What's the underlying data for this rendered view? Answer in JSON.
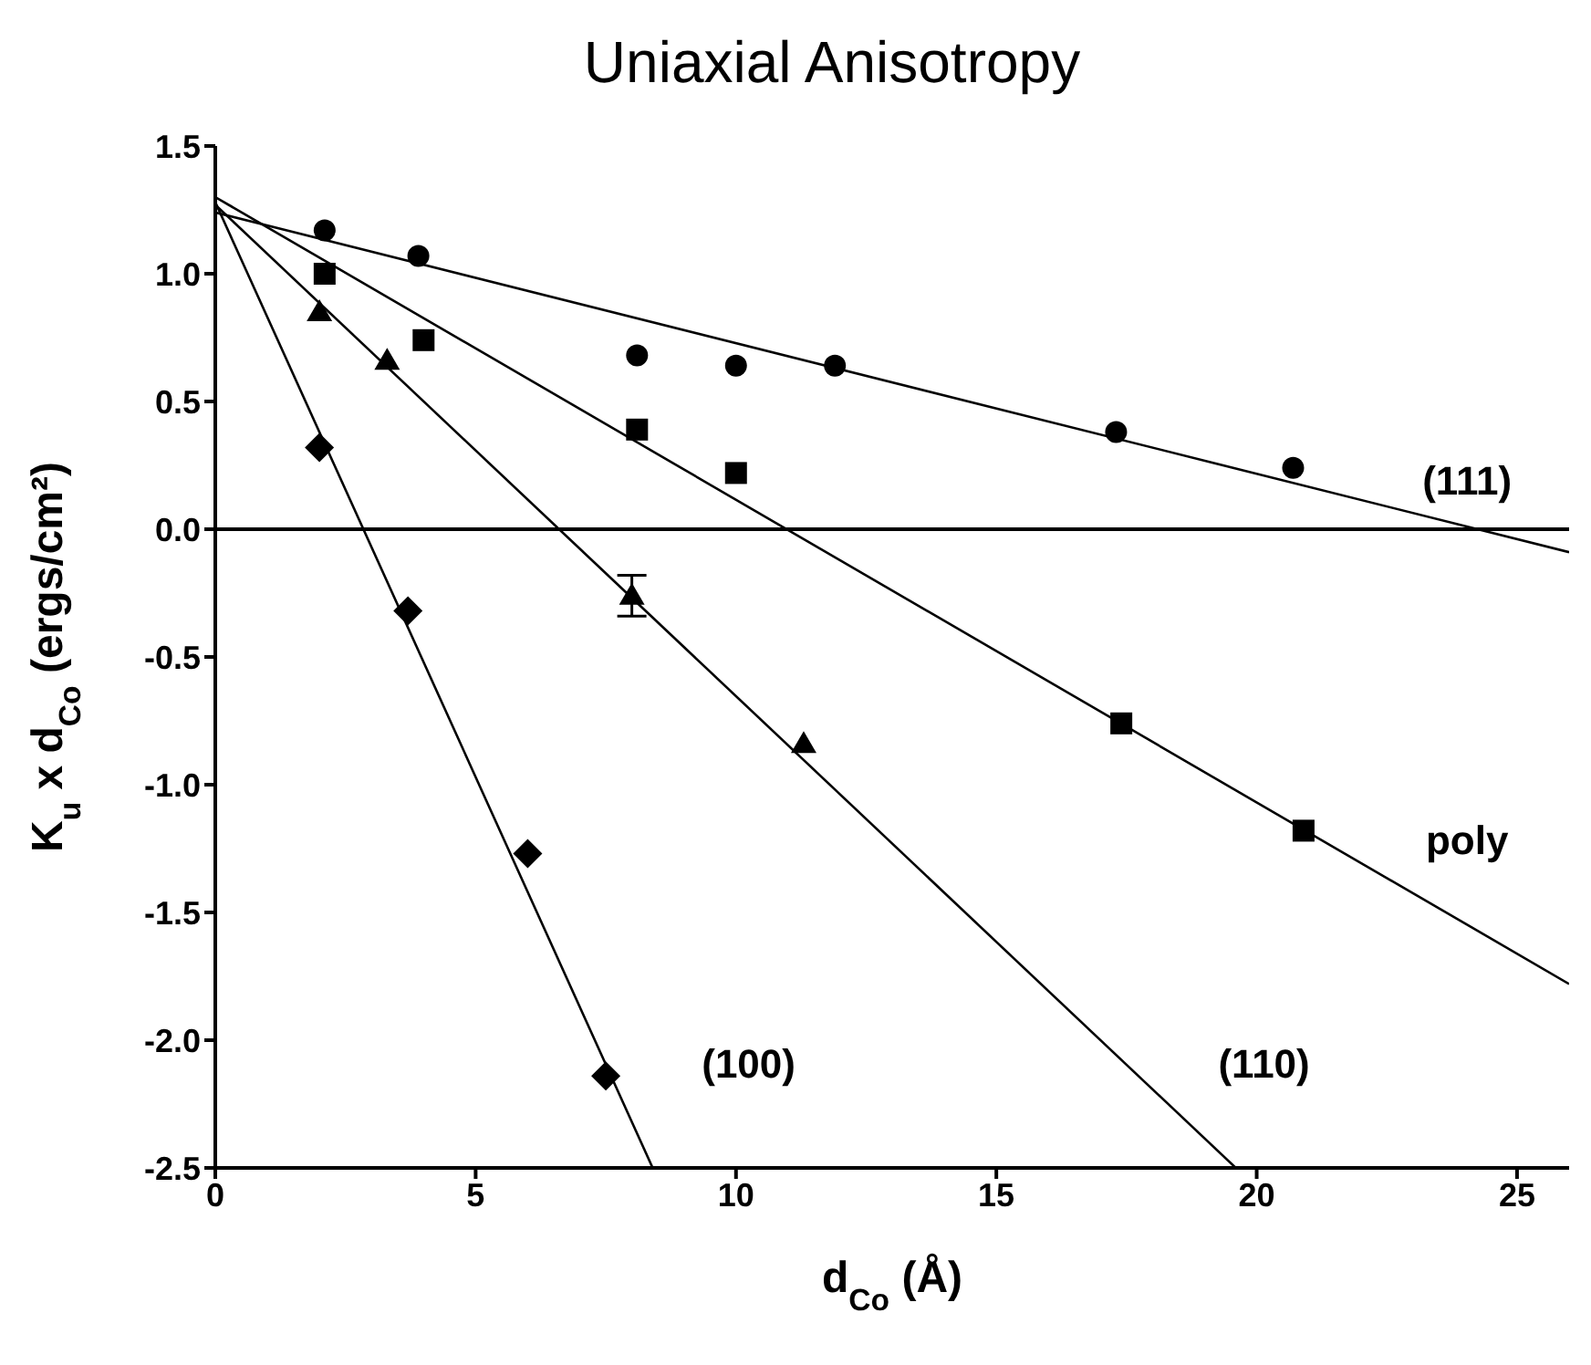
{
  "chart_data": {
    "type": "scatter",
    "title": "Uniaxial Anisotropy",
    "xlabel": "d$_{Co}$ (Å)",
    "ylabel": "K$_{u}$ x d$_{Co}$ (ergs/cm²)",
    "xlim": [
      0,
      26
    ],
    "xticks": [
      0,
      5,
      10,
      15,
      20,
      25
    ],
    "ylim": [
      -2.5,
      1.5
    ],
    "yticks": [
      {
        "value": -2.5,
        "label": "-2.5"
      },
      {
        "value": -2,
        "label": "-2.0"
      },
      {
        "value": -1.5,
        "label": "-1.5"
      },
      {
        "value": -1,
        "label": "-1.0"
      },
      {
        "value": -0.5,
        "label": "-0.5"
      },
      {
        "value": 0,
        "label": "0.0"
      },
      {
        "value": 0.5,
        "label": "0.5"
      },
      {
        "value": 1,
        "label": "1.0"
      },
      {
        "value": 1.5,
        "label": "1.5"
      }
    ],
    "series": [
      {
        "marker": "circle",
        "color": "#000000",
        "x": [
          2.1,
          3.9,
          8.1,
          10,
          11.9,
          17.3,
          20.7
        ],
        "values": [
          1.17,
          1.07,
          0.68,
          0.64,
          0.64,
          0.38,
          0.24
        ]
      },
      {
        "marker": "square",
        "color": "#000000",
        "x": [
          2.1,
          4,
          8.1,
          10,
          17.4,
          20.9
        ],
        "values": [
          1,
          0.74,
          0.39,
          0.22,
          -0.76,
          -1.18
        ]
      },
      {
        "marker": "triangle",
        "color": "#000000",
        "x": [
          2,
          3.3,
          8,
          11.3
        ],
        "values": [
          0.85,
          0.66,
          -0.26,
          -0.84
        ],
        "errors": [
          null,
          null,
          0.08,
          null
        ]
      },
      {
        "marker": "diamond",
        "color": "#000000",
        "x": [
          2,
          3.7,
          6,
          7.5
        ],
        "values": [
          0.32,
          -0.32,
          -1.27,
          -2.14
        ]
      },
      {
        "type": "line",
        "marker": "none",
        "color": "#000000",
        "x": [
          0,
          26
        ],
        "values": [
          1.24,
          -0.09
        ]
      },
      {
        "type": "line",
        "marker": "none",
        "color": "#000000",
        "x": [
          0,
          26
        ],
        "values": [
          1.3,
          -1.78
        ]
      },
      {
        "type": "line",
        "marker": "none",
        "color": "#000000",
        "x": [
          0,
          19.6
        ],
        "values": [
          1.27,
          -2.5
        ]
      },
      {
        "type": "line",
        "marker": "none",
        "color": "#000000",
        "x": [
          0,
          8.4
        ],
        "values": [
          1.28,
          -2.5
        ]
      }
    ],
    "ref_lines": [
      {
        "axis": "y",
        "value": 0,
        "color": "#000000"
      }
    ],
    "annotations": [
      "(111)",
      "poly",
      "(110)",
      "(100)"
    ]
  }
}
